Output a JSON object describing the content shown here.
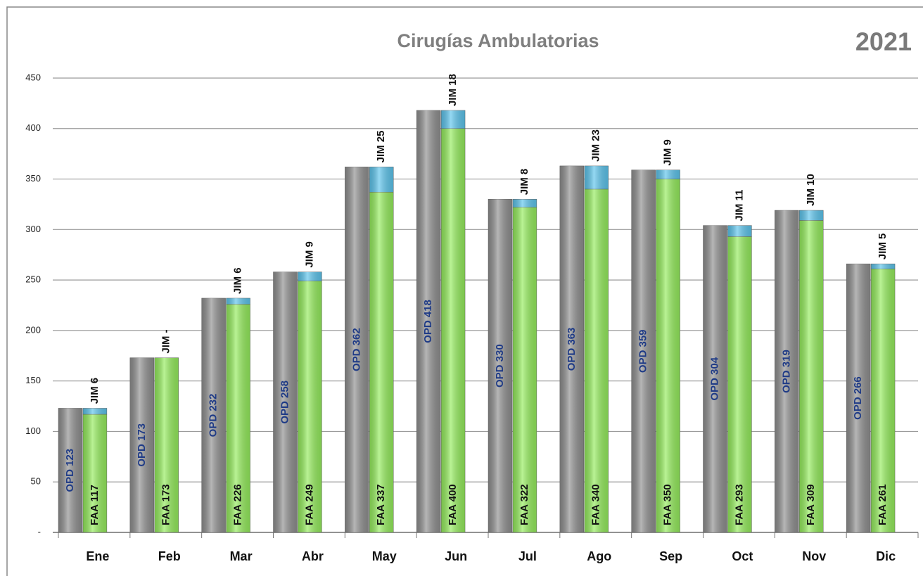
{
  "chart_data": {
    "type": "bar",
    "title": "Cirugías Ambulatorias",
    "subtitle": "2021",
    "categories": [
      "Ene",
      "Feb",
      "Mar",
      "Abr",
      "May",
      "Jun",
      "Jul",
      "Ago",
      "Sep",
      "Oct",
      "Nov",
      "Dic"
    ],
    "series": [
      {
        "color": "#8f8f8f",
        "stack": "opd",
        "values": [
          123,
          173,
          232,
          258,
          362,
          418,
          330,
          363,
          359,
          304,
          319,
          266
        ],
        "value_labels": [
          "OPD 123",
          "OPD 173",
          "OPD 232",
          "OPD 258",
          "OPD 362",
          "OPD 418",
          "OPD 330",
          "OPD 363",
          "OPD 359",
          "OPD 304",
          "OPD 319",
          "OPD 266"
        ]
      },
      {
        "color": "#94ec5c",
        "stack": "faa",
        "values": [
          117,
          173,
          226,
          249,
          337,
          400,
          322,
          340,
          350,
          293,
          309,
          261
        ],
        "value_labels": [
          "FAA 117",
          "FAA 173",
          "FAA 226",
          "FAA 249",
          "FAA 337",
          "FAA 400",
          "FAA 322",
          "FAA 340",
          "FAA 350",
          "FAA 293",
          "FAA 309",
          "FAA 261"
        ]
      },
      {
        "color": "#5cc4ec",
        "stack": "faa",
        "values": [
          6,
          0,
          6,
          9,
          25,
          18,
          8,
          23,
          9,
          11,
          10,
          5
        ],
        "value_labels": [
          "JIM 6",
          "JIM -",
          "JIM 6",
          "JIM 9",
          "JIM 25",
          "JIM 18",
          "JIM 8",
          "JIM 23",
          "JIM 9",
          "JIM 11",
          "JIM 10",
          "JIM 5"
        ]
      }
    ],
    "ylim": [
      0,
      450
    ],
    "yticks": [
      {
        "value": 0,
        "label": "-"
      },
      50,
      100,
      150,
      200,
      250,
      300,
      350,
      400,
      450
    ],
    "grid": true
  }
}
